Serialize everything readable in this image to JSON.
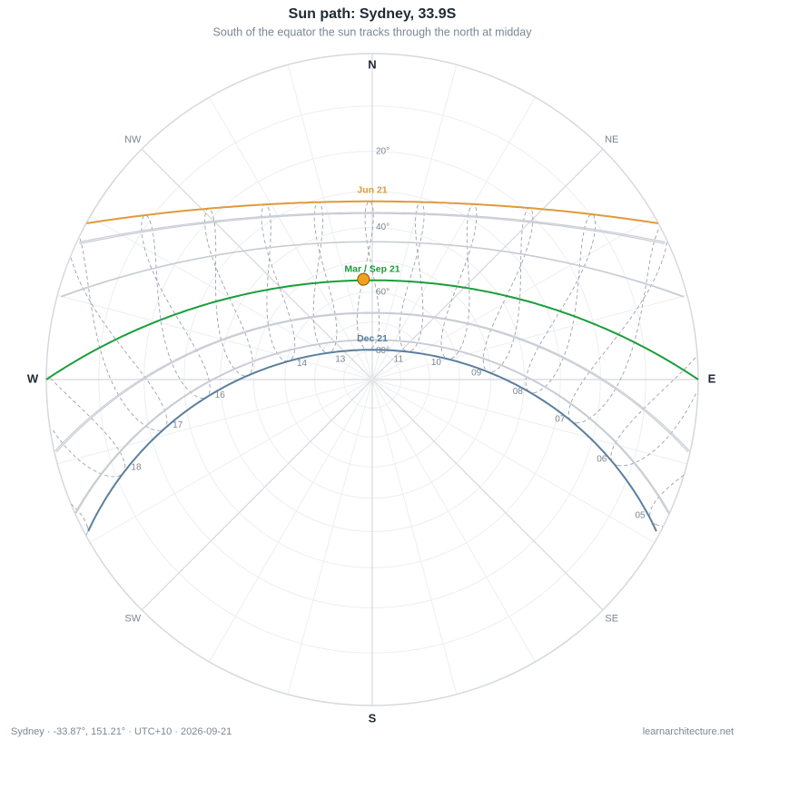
{
  "chart_data": {
    "type": "sunpath",
    "title": "Sun path: Sydney, 33.9S",
    "subtitle": "South of the equator the sun tracks through the north at midday",
    "latitude": -33.87,
    "longitude": 151.21,
    "utc_offset": 10,
    "compass": [
      {
        "azimuth": 0,
        "label": "N"
      },
      {
        "azimuth": 45,
        "label": "NE"
      },
      {
        "azimuth": 90,
        "label": "E"
      },
      {
        "azimuth": 135,
        "label": "SE"
      },
      {
        "azimuth": 180,
        "label": "S"
      },
      {
        "azimuth": 225,
        "label": "SW"
      },
      {
        "azimuth": 270,
        "label": "W"
      },
      {
        "azimuth": 315,
        "label": "NW"
      }
    ],
    "altitude_rings": [
      10,
      20,
      30,
      40,
      50,
      60,
      70,
      80
    ],
    "altitude_ticks": [
      {
        "value": 20,
        "label": "20°"
      },
      {
        "value": 40,
        "label": "40°"
      },
      {
        "value": 60,
        "label": "60°"
      },
      {
        "value": 80,
        "label": "80°"
      }
    ],
    "day_paths": [
      {
        "label": "Jun 21",
        "declination": 23.44,
        "color": "#e09a3a"
      },
      {
        "declination": 20.4,
        "color": "#c8ccd4"
      },
      {
        "declination": 20.1,
        "color": "#c8ccd4"
      },
      {
        "declination": 12.0,
        "color": "#c8ccd4"
      },
      {
        "declination": 11.9,
        "color": "#c8ccd4"
      },
      {
        "label": "Mar / Sep 21",
        "declination": 0,
        "color": "#1a9e3a"
      },
      {
        "declination": -10.6,
        "color": "#c8ccd4"
      },
      {
        "declination": -10.9,
        "color": "#c8ccd4"
      },
      {
        "declination": -19.9,
        "color": "#c8ccd4"
      },
      {
        "declination": -20.1,
        "color": "#c8ccd4"
      },
      {
        "label": "Dec 21",
        "declination": -23.44,
        "color": "#5b7f9e"
      }
    ],
    "hours": [
      5,
      6,
      7,
      8,
      9,
      10,
      11,
      12,
      13,
      14,
      15,
      16,
      17,
      18,
      19
    ],
    "hour_labels": [
      "05",
      "06",
      "07",
      "08",
      "09",
      "10",
      "11",
      null,
      "13",
      "14",
      null,
      "16",
      "17",
      "18",
      null
    ],
    "sun_position": {
      "azimuth": 355,
      "altitude": 55.7,
      "color": "#f0a020"
    },
    "footer": "Sydney  ·  -33.87°, 151.21°  ·  UTC+10  ·  2026-09-21",
    "credit": "learnarchitecture.net"
  }
}
